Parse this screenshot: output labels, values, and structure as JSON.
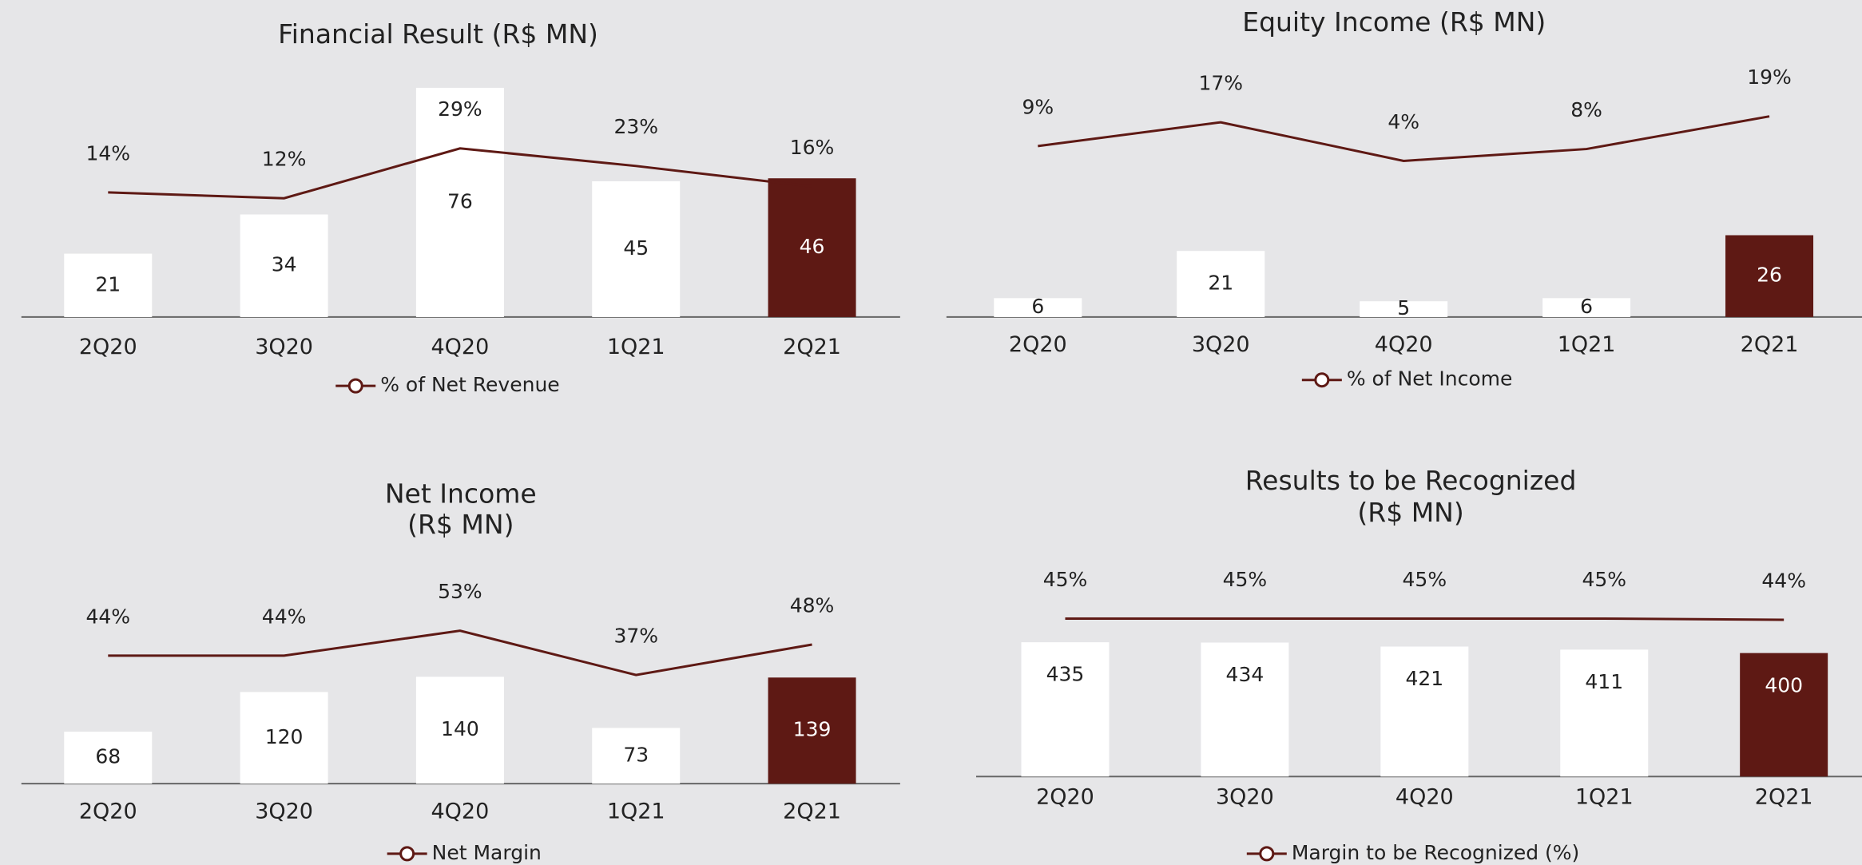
{
  "chart_data": [
    {
      "type": "bar_line",
      "title": [
        "Financial Result (R$ MN)"
      ],
      "categories": [
        "2Q20",
        "3Q20",
        "4Q20",
        "1Q21",
        "2Q21"
      ],
      "series": [
        {
          "type": "bar",
          "colors": [
            "#ffffff",
            "#ffffff",
            "#ffffff",
            "#ffffff",
            "#5e1914"
          ],
          "values": [
            21,
            34,
            76,
            45,
            46
          ]
        },
        {
          "type": "line",
          "name": "% of Net Revenue",
          "color": "#5e1914",
          "values": [
            14,
            12,
            29,
            23,
            16
          ],
          "value_labels": [
            "14%",
            "12%",
            "29%",
            "23%",
            "16%"
          ]
        }
      ]
    },
    {
      "type": "bar_line",
      "title": [
        "Equity Income (R$ MN)"
      ],
      "categories": [
        "2Q20",
        "3Q20",
        "4Q20",
        "1Q21",
        "2Q21"
      ],
      "series": [
        {
          "type": "bar",
          "colors": [
            "#ffffff",
            "#ffffff",
            "#ffffff",
            "#ffffff",
            "#5e1914"
          ],
          "values": [
            6,
            21,
            5,
            6,
            26
          ]
        },
        {
          "type": "line",
          "name": "% of Net Income",
          "color": "#5e1914",
          "values": [
            9,
            17,
            4,
            8,
            19
          ],
          "value_labels": [
            "9%",
            "17%",
            "4%",
            "8%",
            "19%"
          ]
        }
      ]
    },
    {
      "type": "bar_line",
      "title": [
        "Net Income",
        "(R$ MN)"
      ],
      "categories": [
        "2Q20",
        "3Q20",
        "4Q20",
        "1Q21",
        "2Q21"
      ],
      "series": [
        {
          "type": "bar",
          "colors": [
            "#ffffff",
            "#ffffff",
            "#ffffff",
            "#ffffff",
            "#5e1914"
          ],
          "values": [
            68,
            120,
            140,
            73,
            139
          ]
        },
        {
          "type": "line",
          "name": "Net Margin",
          "color": "#5e1914",
          "values": [
            44,
            44,
            53,
            37,
            48
          ],
          "value_labels": [
            "44%",
            "44%",
            "53%",
            "37%",
            "48%"
          ]
        }
      ]
    },
    {
      "type": "bar_line",
      "title": [
        "Results to be Recognized",
        "(R$ MN)"
      ],
      "categories": [
        "2Q20",
        "3Q20",
        "4Q20",
        "1Q21",
        "2Q21"
      ],
      "series": [
        {
          "type": "bar",
          "colors": [
            "#ffffff",
            "#ffffff",
            "#ffffff",
            "#ffffff",
            "#5e1914"
          ],
          "values": [
            435,
            434,
            421,
            411,
            400
          ]
        },
        {
          "type": "line",
          "name": "Margin to be Recognized (%)",
          "color": "#5e1914",
          "values": [
            45,
            45,
            45,
            45,
            44
          ],
          "value_labels": [
            "45%",
            "45%",
            "45%",
            "45%",
            "44%"
          ]
        }
      ]
    }
  ]
}
